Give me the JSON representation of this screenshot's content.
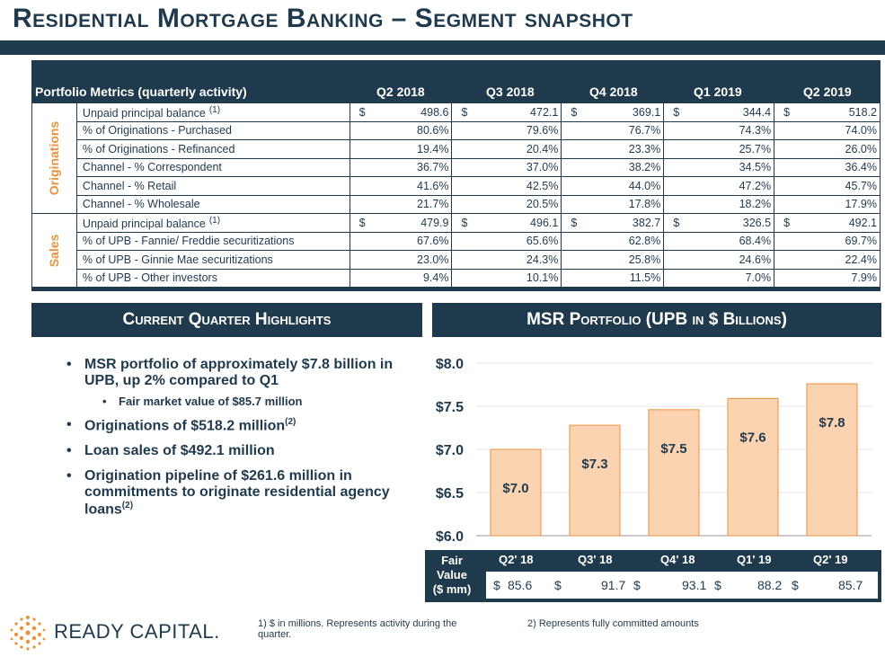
{
  "title": "Residential Mortgage Banking – Segment snapshot",
  "metrics": {
    "header_label": "Portfolio Metrics (quarterly activity)",
    "quarters": [
      "Q2 2018",
      "Q3 2018",
      "Q4 2018",
      "Q1 2019",
      "Q2 2019"
    ],
    "segments": [
      {
        "name": "Originations",
        "rows": [
          {
            "label": "Unpaid principal balance",
            "sup": "(1)",
            "dollar": true,
            "values": [
              "498.6",
              "472.1",
              "369.1",
              "344.4",
              "518.2"
            ]
          },
          {
            "label": " % of Originations - Purchased",
            "values": [
              "80.6%",
              "79.6%",
              "76.7%",
              "74.3%",
              "74.0%"
            ]
          },
          {
            "label": " % of Originations - Refinanced",
            "values": [
              "19.4%",
              "20.4%",
              "23.3%",
              "25.7%",
              "26.0%"
            ]
          },
          {
            "label": "Channel - % Correspondent",
            "values": [
              "36.7%",
              "37.0%",
              "38.2%",
              "34.5%",
              "36.4%"
            ]
          },
          {
            "label": "Channel - % Retail",
            "values": [
              "41.6%",
              "42.5%",
              "44.0%",
              "47.2%",
              "45.7%"
            ]
          },
          {
            "label": "Channel - % Wholesale",
            "values": [
              "21.7%",
              "20.5%",
              "17.8%",
              "18.2%",
              "17.9%"
            ]
          }
        ]
      },
      {
        "name": "Sales",
        "rows": [
          {
            "label": "Unpaid principal balance",
            "sup": "(1)",
            "dollar": true,
            "values": [
              "479.9",
              "496.1",
              "382.7",
              "326.5",
              "492.1"
            ]
          },
          {
            "label": " % of UPB - Fannie/ Freddie securitizations",
            "values": [
              "67.6%",
              "65.6%",
              "62.8%",
              "68.4%",
              "69.7%"
            ]
          },
          {
            "label": " % of UPB - Ginnie Mae securitizations",
            "values": [
              "23.0%",
              "24.3%",
              "25.8%",
              "24.6%",
              "22.4%"
            ]
          },
          {
            "label": " % of UPB - Other investors",
            "values": [
              "9.4%",
              "10.1%",
              "11.5%",
              "7.0%",
              "7.9%"
            ]
          }
        ]
      }
    ]
  },
  "highlights": {
    "heading": "Current Quarter Highlights",
    "items": [
      {
        "text": "MSR portfolio of approximately $7.8 billion in UPB, up 2% compared to Q1",
        "sup": ""
      },
      {
        "text": "Fair market value of $85.7 million",
        "sup": "",
        "sub": true
      },
      {
        "text": "Originations of $518.2 million",
        "sup": "(2)"
      },
      {
        "text": "Loan sales of $492.1 million",
        "sup": ""
      },
      {
        "text": "Origination pipeline of $261.6 million in commitments to originate residential agency loans",
        "sup": "(2)"
      }
    ]
  },
  "msr": {
    "heading": "MSR Portfolio (UPB in $ Billions)",
    "fair_value_label": [
      "Fair",
      "Value",
      "($ mm)"
    ],
    "quarters": [
      "Q2' 18",
      "Q3' 18",
      "Q4' 18",
      "Q1' 19",
      "Q2' 19"
    ],
    "fair_values": [
      "85.6",
      "91.7",
      "93.1",
      "88.2",
      "85.7"
    ]
  },
  "chart_data": {
    "type": "bar",
    "categories": [
      "Q2' 18",
      "Q3' 18",
      "Q4' 18",
      "Q1' 19",
      "Q2' 19"
    ],
    "values": [
      7.0,
      7.28,
      7.46,
      7.59,
      7.76
    ],
    "data_labels": [
      "$7.0",
      "$7.3",
      "$7.5",
      "$7.6",
      "$7.8"
    ],
    "ylim": [
      6.0,
      8.0
    ],
    "yticks": [
      "$6.0",
      "$6.5",
      "$7.0",
      "$7.5",
      "$8.0"
    ],
    "ytick_values": [
      6.0,
      6.5,
      7.0,
      7.5,
      8.0
    ],
    "bar_color": "#fbd3b0",
    "bar_edge": "#e8923a",
    "grid": true
  },
  "footer": {
    "logo_text": "READY CAPITAL",
    "logo_mark": "READY CAPITAL.",
    "note1": "1)  $ in millions. Represents activity during the quarter.",
    "note2": "2)  Represents fully committed amounts"
  },
  "colors": {
    "navy": "#1f3a4d",
    "orange": "#e8923a"
  }
}
